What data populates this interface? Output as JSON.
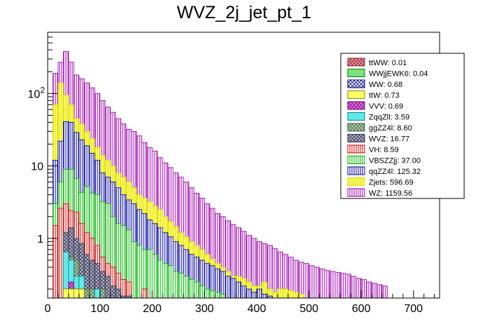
{
  "chart_data": {
    "type": "bar",
    "title": "WVZ_2j_jet_pt_1",
    "xlabel": "",
    "ylabel": "",
    "xlim": [
      0,
      750
    ],
    "ylim_log": [
      0.15,
      700
    ],
    "yscale": "log",
    "bin_width": 10,
    "x_start": 10,
    "x_ticks": [
      0,
      100,
      200,
      300,
      400,
      500,
      600,
      700
    ],
    "x_tick_labels": [
      "0",
      "100",
      "200",
      "300",
      "400",
      "500",
      "600",
      "700"
    ],
    "y_ticks": [
      1,
      10,
      100
    ],
    "y_tick_labels": [
      "1",
      "10",
      "10^2"
    ],
    "stack_order_bottom_to_top": [
      "ttWW",
      "WWjjEWK6",
      "WW",
      "ttW",
      "VVV",
      "ZqqZll",
      "ggZZ4l",
      "WVZ",
      "VH",
      "VBSZZjj",
      "qqZZ4l",
      "Zjets",
      "WZ"
    ],
    "cumulative_totals": {
      "ttWW": [
        0,
        0,
        0,
        0,
        0,
        0,
        0,
        0,
        0,
        0,
        0,
        0,
        0,
        0,
        0,
        0,
        0,
        0,
        0,
        0,
        0,
        0,
        0,
        0,
        0,
        0,
        0,
        0,
        0,
        0,
        0,
        0,
        0,
        0,
        0,
        0,
        0,
        0,
        0,
        0,
        0,
        0,
        0,
        0,
        0,
        0,
        0,
        0,
        0,
        0,
        0,
        0,
        0,
        0,
        0,
        0,
        0,
        0,
        0,
        0,
        0,
        0,
        0,
        0
      ],
      "WWjjEWK6": [
        0,
        0,
        0,
        0,
        0,
        0,
        0,
        0,
        0,
        0,
        0,
        0,
        0,
        0,
        0,
        0,
        0,
        0,
        0,
        0,
        0,
        0,
        0,
        0,
        0,
        0,
        0,
        0,
        0,
        0,
        0,
        0,
        0,
        0,
        0,
        0,
        0,
        0,
        0,
        0,
        0,
        0,
        0,
        0,
        0,
        0,
        0,
        0,
        0,
        0,
        0,
        0,
        0,
        0,
        0,
        0,
        0,
        0,
        0,
        0,
        0,
        0,
        0,
        0
      ],
      "WW": [
        0,
        0,
        0,
        0,
        0,
        0,
        0,
        0,
        0,
        0,
        0,
        0,
        0,
        0,
        0,
        0,
        0,
        0,
        0,
        0,
        0,
        0,
        0,
        0,
        0,
        0,
        0,
        0,
        0,
        0,
        0,
        0,
        0,
        0,
        0,
        0,
        0,
        0,
        0,
        0,
        0,
        0,
        0,
        0,
        0,
        0,
        0,
        0,
        0,
        0,
        0,
        0,
        0,
        0,
        0,
        0,
        0,
        0,
        0,
        0,
        0,
        0,
        0,
        0
      ],
      "ttW": [
        0,
        0,
        0.2,
        0.2,
        0.2,
        0.2,
        0,
        0,
        0,
        0,
        0,
        0,
        0,
        0,
        0,
        0,
        0,
        0,
        0,
        0,
        0,
        0,
        0,
        0,
        0,
        0,
        0,
        0,
        0,
        0,
        0,
        0,
        0,
        0,
        0,
        0,
        0,
        0,
        0,
        0,
        0,
        0,
        0,
        0,
        0,
        0,
        0,
        0,
        0,
        0,
        0,
        0,
        0,
        0,
        0,
        0,
        0,
        0,
        0,
        0,
        0,
        0,
        0,
        0
      ],
      "VVV": [
        0,
        0,
        0.2,
        0.25,
        0.2,
        0.2,
        0,
        0,
        0,
        0,
        0,
        0,
        0,
        0,
        0,
        0,
        0,
        0,
        0,
        0,
        0,
        0,
        0,
        0,
        0,
        0,
        0,
        0,
        0,
        0,
        0,
        0,
        0,
        0,
        0,
        0,
        0,
        0,
        0,
        0,
        0,
        0,
        0,
        0,
        0,
        0,
        0,
        0,
        0,
        0,
        0,
        0,
        0,
        0,
        0,
        0,
        0,
        0,
        0,
        0,
        0,
        0,
        0,
        0
      ],
      "ZqqZll": [
        0,
        0,
        0.65,
        0.5,
        0.3,
        0.3,
        0,
        0,
        0.2,
        0,
        0,
        0,
        0,
        0,
        0,
        0,
        0,
        0,
        0,
        0,
        0,
        0,
        0,
        0,
        0,
        0,
        0,
        0,
        0,
        0,
        0,
        0,
        0,
        0,
        0,
        0,
        0,
        0,
        0,
        0,
        0,
        0,
        0,
        0,
        0,
        0,
        0,
        0,
        0,
        0,
        0,
        0,
        0,
        0,
        0,
        0,
        0,
        0,
        0,
        0,
        0,
        0,
        0,
        0
      ],
      "ggZZ4l": [
        0,
        0,
        0.65,
        0.55,
        0.5,
        0.3,
        0.2,
        0.2,
        0.2,
        0.2,
        0,
        0,
        0,
        0,
        0,
        0,
        0,
        0,
        0,
        0,
        0,
        0,
        0,
        0,
        0,
        0,
        0,
        0,
        0,
        0,
        0,
        0,
        0,
        0,
        0,
        0,
        0,
        0,
        0,
        0,
        0,
        0,
        0,
        0,
        0,
        0,
        0,
        0,
        0,
        0,
        0,
        0,
        0,
        0,
        0,
        0,
        0,
        0,
        0,
        0,
        0,
        0,
        0,
        0
      ],
      "WVZ": [
        0,
        0,
        1.2,
        1.4,
        1.0,
        0.85,
        0.6,
        0.5,
        0.45,
        0.35,
        0.3,
        0.22,
        0.2,
        0.16,
        0.16,
        0,
        0,
        0,
        0,
        0,
        0,
        0,
        0,
        0,
        0,
        0,
        0,
        0,
        0,
        0,
        0,
        0,
        0,
        0,
        0,
        0,
        0,
        0,
        0,
        0,
        0,
        0,
        0,
        0,
        0,
        0,
        0,
        0,
        0,
        0,
        0,
        0,
        0,
        0,
        0,
        0,
        0,
        0,
        0,
        0,
        0,
        0,
        0,
        0
      ],
      "VH": [
        1.5,
        2.6,
        3.0,
        2.4,
        2.3,
        1.6,
        1.2,
        1.0,
        0.8,
        0.55,
        0.45,
        0.4,
        0.33,
        0.27,
        0.25,
        0,
        0,
        0.2,
        0,
        0,
        0,
        0,
        0,
        0,
        0,
        0,
        0,
        0,
        0,
        0,
        0,
        0,
        0,
        0,
        0,
        0,
        0,
        0,
        0,
        0,
        0,
        0,
        0,
        0,
        0,
        0,
        0,
        0,
        0,
        0,
        0,
        0,
        0,
        0,
        0,
        0,
        0,
        0,
        0,
        0,
        0,
        0,
        0,
        0
      ],
      "VBSZZjj": [
        3,
        6,
        9,
        9,
        6.7,
        4.3,
        5.2,
        4.2,
        4.0,
        3.2,
        3.0,
        2.0,
        1.6,
        1.5,
        1.3,
        0.9,
        0.8,
        0.7,
        0.7,
        0.6,
        0.5,
        0.45,
        0.42,
        0.35,
        0.33,
        0.3,
        0.27,
        0.25,
        0.22,
        0.2,
        0.19,
        0.18,
        0.17,
        0,
        0,
        0,
        0,
        0,
        0,
        0,
        0,
        0,
        0,
        0,
        0,
        0,
        0,
        0,
        0,
        0,
        0,
        0,
        0,
        0,
        0,
        0,
        0,
        0,
        0,
        0,
        0,
        0,
        0,
        0
      ],
      "qqZZ4l": [
        12,
        22,
        41,
        40,
        29,
        23,
        19,
        15,
        12,
        8,
        7,
        6,
        5,
        4,
        3.4,
        3,
        2.5,
        2.2,
        1.8,
        1.6,
        1.4,
        1.2,
        1.05,
        0.9,
        0.8,
        0.7,
        0.6,
        0.55,
        0.5,
        0.45,
        0.42,
        0.38,
        0.35,
        0.3,
        0.28,
        0.25,
        0.22,
        0.2,
        0.18,
        0.2,
        0.17,
        0.16,
        0,
        0,
        0,
        0,
        0,
        0,
        0,
        0,
        0,
        0,
        0,
        0,
        0,
        0,
        0,
        0,
        0,
        0,
        0,
        0,
        0,
        0
      ],
      "Zjets": [
        70,
        140,
        95,
        70,
        45,
        38,
        30,
        24,
        18,
        14,
        12,
        10,
        8,
        7,
        6,
        5,
        4,
        3.6,
        3.2,
        2.8,
        2.5,
        2.0,
        1.7,
        1.45,
        1.2,
        1.05,
        0.9,
        0.8,
        0.7,
        0.6,
        0.52,
        0.45,
        0.4,
        0.35,
        0.3,
        0.3,
        0.28,
        0.25,
        0.22,
        0.22,
        0.25,
        0.2,
        0.18,
        0.2,
        0.2,
        0.19,
        0.18,
        0.17,
        0,
        0,
        0,
        0,
        0,
        0,
        0,
        0,
        0,
        0,
        0,
        0,
        0,
        0,
        0,
        0
      ],
      "WZ": [
        190,
        270,
        380,
        270,
        180,
        160,
        140,
        120,
        100,
        80,
        65,
        55,
        45,
        38,
        32,
        30,
        26,
        21,
        18,
        16,
        13,
        11,
        9.5,
        8,
        7,
        6,
        5,
        4.2,
        3.6,
        3.0,
        2.6,
        2.2,
        2.0,
        1.75,
        1.55,
        1.4,
        1.25,
        1.1,
        1.0,
        0.9,
        0.85,
        0.8,
        0.72,
        0.65,
        0.6,
        0.55,
        0.5,
        0.47,
        0.45,
        0.42,
        0.4,
        0.38,
        0.36,
        0.35,
        0.34,
        0.33,
        0.32,
        0.3,
        0.28,
        0.27,
        0.25,
        0.24,
        0.23,
        0.22
      ]
    },
    "series": [
      {
        "name": "ttWW",
        "label": "ttWW: 0.01",
        "color": "#a0202c",
        "fill": "#d8a0a8",
        "pattern": "crosshatch"
      },
      {
        "name": "WWjjEWK6",
        "label": "WWjjEWK6: 0.04",
        "color": "#008000",
        "fill": "#7fe07f",
        "pattern": "solid"
      },
      {
        "name": "WW",
        "label": "WW: 0.68",
        "color": "#000080",
        "fill": "#ffffff",
        "pattern": "crosshatch"
      },
      {
        "name": "ttW",
        "label": "ttW: 0.73",
        "color": "#888800",
        "fill": "#ffff66",
        "pattern": "solid"
      },
      {
        "name": "VVV",
        "label": "VVV: 0.69",
        "color": "#800080",
        "fill": "#e080e8",
        "pattern": "crosshatch"
      },
      {
        "name": "ZqqZll",
        "label": "ZqqZll: 3.59",
        "color": "#008888",
        "fill": "#66e8e8",
        "pattern": "solid"
      },
      {
        "name": "ggZZ4l",
        "label": "ggZZ4l: 8.60",
        "color": "#406040",
        "fill": "#b8d8b8",
        "pattern": "crosshatch"
      },
      {
        "name": "WVZ",
        "label": "WVZ: 16.77",
        "color": "#303050",
        "fill": "#b8b8c8",
        "pattern": "crosshatch"
      },
      {
        "name": "VH",
        "label": "VH: 8.59",
        "color": "#cc0000",
        "fill": "#ffffff",
        "pattern": "vertical"
      },
      {
        "name": "VBSZZjj",
        "label": "VBSZZjj: 37.00",
        "color": "#00b000",
        "fill": "#ffffff",
        "pattern": "vertical"
      },
      {
        "name": "qqZZ4l",
        "label": "qqZZ4l: 125.32",
        "color": "#000099",
        "fill": "#ffffff",
        "pattern": "vertical"
      },
      {
        "name": "Zjets",
        "label": "Zjets: 596.69",
        "color": "#d8d800",
        "fill": "#ffff77",
        "pattern": "vertical"
      },
      {
        "name": "WZ",
        "label": "WZ: 1159.56",
        "color": "#9900aa",
        "fill": "#ffffff",
        "pattern": "vertical"
      }
    ],
    "legend_position": "top-right"
  }
}
